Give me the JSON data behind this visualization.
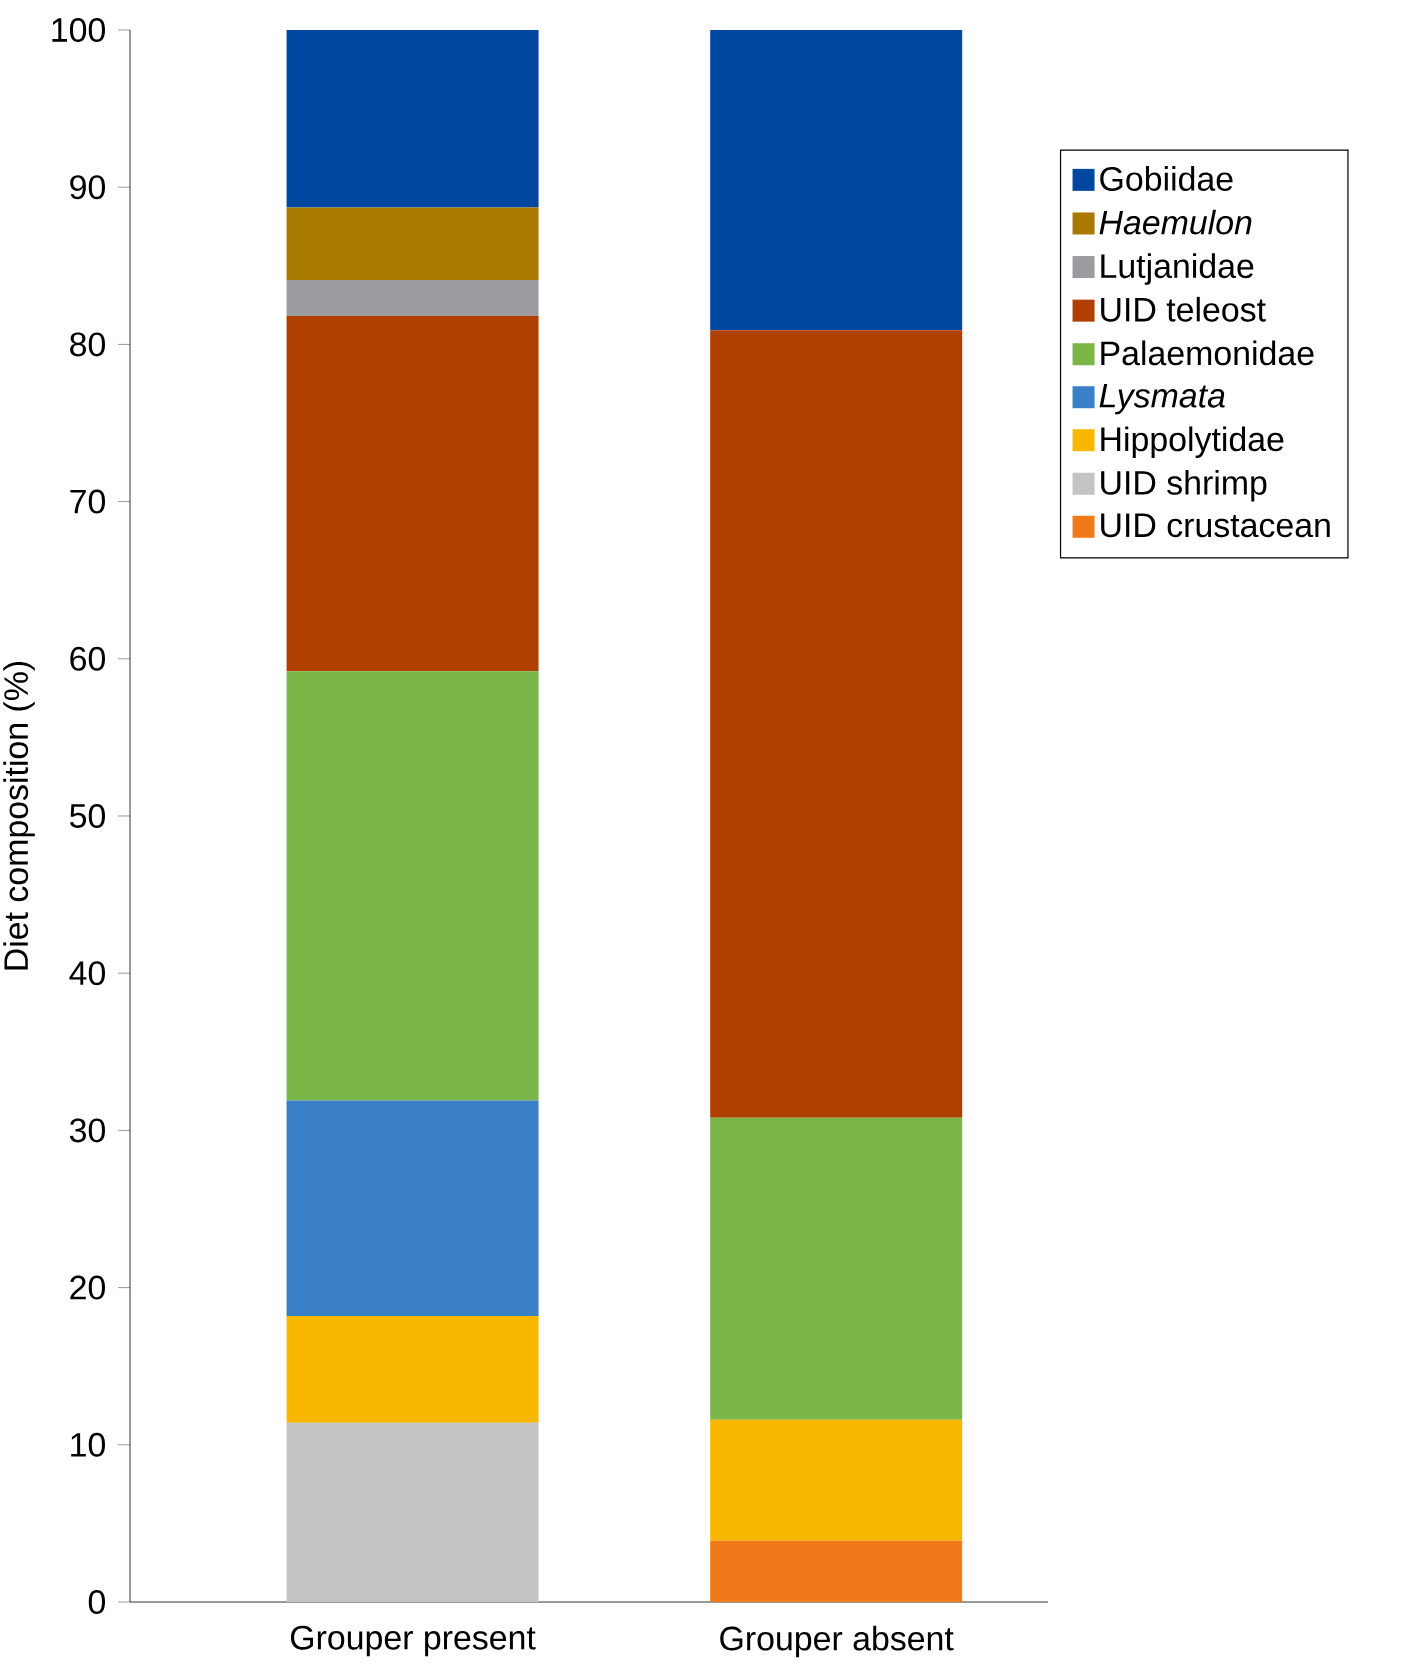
{
  "chart_data": {
    "type": "bar",
    "stacked": true,
    "ylabel": "Diet composition (%)",
    "categories": [
      "Grouper present",
      "Grouper absent"
    ],
    "ylim": [
      0,
      100
    ],
    "yticks": [
      0,
      10,
      20,
      30,
      40,
      50,
      60,
      70,
      80,
      90,
      100
    ],
    "legend": "right",
    "grid": false,
    "series": [
      {
        "name": "UID crustacean",
        "color": "#f07a1a",
        "values": [
          null,
          3.9
        ]
      },
      {
        "name": "UID shrimp",
        "color": "#c4c4c6",
        "values": [
          11.4,
          null
        ]
      },
      {
        "name": "Hippolytidae",
        "color": "#f9b800",
        "values": [
          6.8,
          7.7
        ]
      },
      {
        "name": "*Lysmata*",
        "color": "#3a80c8",
        "values": [
          13.7,
          null
        ]
      },
      {
        "name": "Palaemonidae",
        "color": "#7ab648",
        "values": [
          27.3,
          19.2
        ]
      },
      {
        "name": "UID teleost",
        "color": "#b04000",
        "values": [
          22.6,
          50.1
        ]
      },
      {
        "name": "Lutjanidae",
        "color": "#9b9ba0",
        "values": [
          2.3,
          null
        ]
      },
      {
        "name": "*Haemulon*",
        "color": "#a87a00",
        "values": [
          4.6,
          null
        ]
      },
      {
        "name": "Gobiidae",
        "color": "#0047a0",
        "values": [
          11.3,
          19.1
        ]
      }
    ]
  }
}
